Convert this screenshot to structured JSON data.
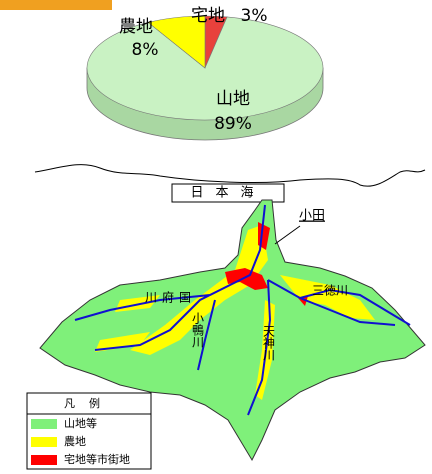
{
  "chart_data": {
    "type": "pie",
    "categories": [
      "宅地",
      "山地",
      "農地"
    ],
    "values": [
      3,
      89,
      8
    ],
    "value_labels": [
      "3%",
      "89%",
      "8%"
    ],
    "colors": [
      "#e8413c",
      "#c9f2c3",
      "#ffff00"
    ]
  },
  "map": {
    "sea": "日本海",
    "place": "小田",
    "rivers": [
      "国府川",
      "小鴨川",
      "天神川",
      "三徳川"
    ],
    "legend": {
      "title": "凡例",
      "items": [
        "山地等",
        "農地",
        "宅地等市街地"
      ]
    }
  }
}
